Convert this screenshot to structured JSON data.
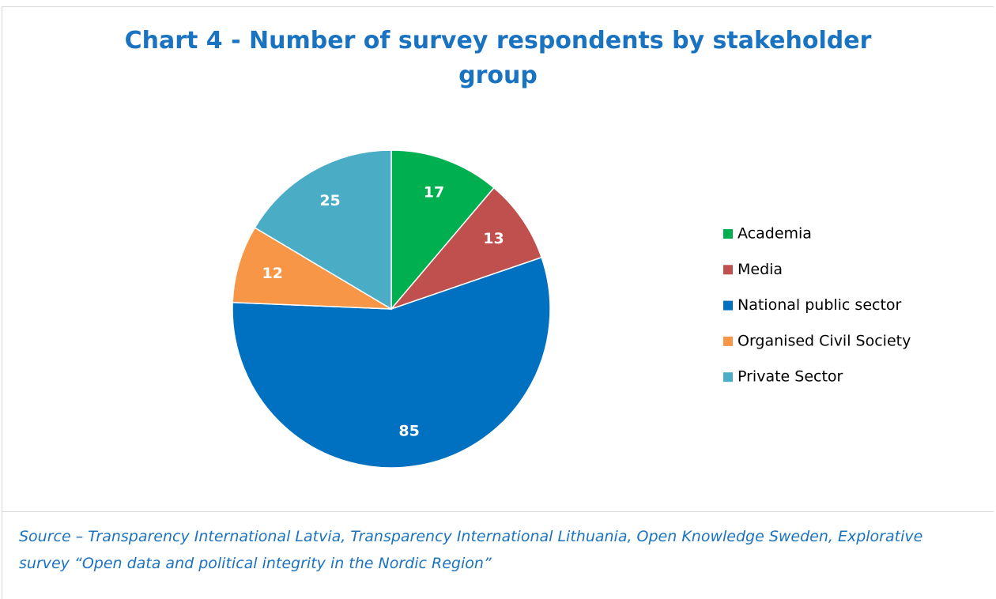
{
  "chart_data": {
    "type": "pie",
    "title": "Chart 4 - Number of survey respondents by stakeholder group",
    "categories": [
      "Academia",
      "Media",
      "National public sector",
      "Organised Civil Society",
      "Private Sector"
    ],
    "values": [
      17,
      13,
      85,
      12,
      25
    ],
    "colors": [
      "#00b050",
      "#c0504d",
      "#0070c0",
      "#f79646",
      "#4bacc6"
    ],
    "legend": "right",
    "caption": "Source – Transparency International Latvia, Transparency International Lithuania, Open Knowledge Sweden, Explorative survey “Open data and political integrity in the Nordic Region”"
  }
}
